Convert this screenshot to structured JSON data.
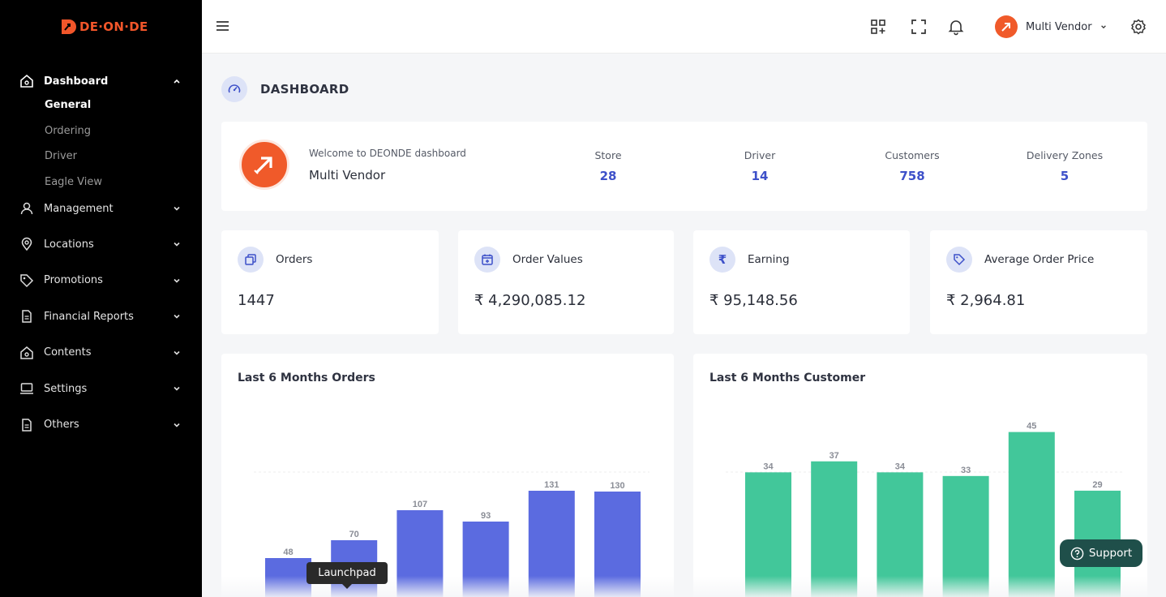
{
  "brand": {
    "logo_text": "DE·ON·DE",
    "accent": "#f2562a"
  },
  "sidebar": {
    "dashboard": {
      "label": "Dashboard",
      "icon": "home-icon"
    },
    "dashboard_sub": [
      "General",
      "Ordering",
      "Driver",
      "Eagle View"
    ],
    "items": [
      {
        "label": "Management",
        "icon": "user-icon"
      },
      {
        "label": "Locations",
        "icon": "map-pin-icon"
      },
      {
        "label": "Promotions",
        "icon": "tag-icon"
      },
      {
        "label": "Financial Reports",
        "icon": "document-icon"
      },
      {
        "label": "Contents",
        "icon": "home-icon"
      },
      {
        "label": "Settings",
        "icon": "monitor-icon"
      },
      {
        "label": "Others",
        "icon": "document-icon"
      }
    ]
  },
  "header": {
    "user_name": "Multi Vendor"
  },
  "page": {
    "title": "DASHBOARD"
  },
  "welcome": {
    "greeting": "Welcome to DEONDE dashboard",
    "name": "Multi Vendor",
    "stats": [
      {
        "label": "Store",
        "value": "28"
      },
      {
        "label": "Driver",
        "value": "14"
      },
      {
        "label": "Customers",
        "value": "758"
      },
      {
        "label": "Delivery Zones",
        "value": "5"
      }
    ]
  },
  "kpis": [
    {
      "label": "Orders",
      "value": "1447",
      "icon": "copy-icon"
    },
    {
      "label": "Order Values",
      "value": "₹ 4,290,085.12",
      "icon": "calendar-plus-icon"
    },
    {
      "label": "Earning",
      "value": "₹ 95,148.56",
      "icon": "rupee-icon"
    },
    {
      "label": "Average Order Price",
      "value": "₹ 2,964.81",
      "icon": "tag-icon"
    }
  ],
  "chart_data": [
    {
      "type": "bar",
      "title": "Last 6 Months Orders",
      "values": [
        48,
        70,
        107,
        93,
        131,
        130
      ],
      "color": "#5b6be0"
    },
    {
      "type": "bar",
      "title": "Last 6 Months Customer",
      "values": [
        34,
        37,
        34,
        33,
        45,
        29
      ],
      "color": "#42c79a"
    }
  ],
  "tooltip": {
    "text": "Launchpad"
  },
  "support": {
    "label": "Support"
  }
}
